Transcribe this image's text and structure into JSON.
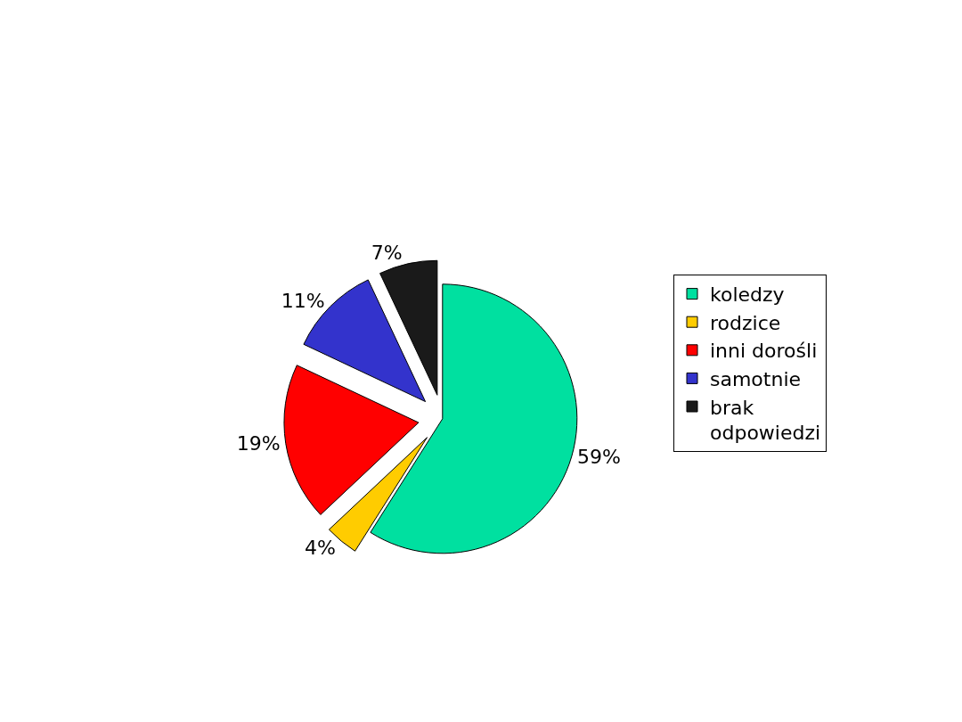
{
  "chart_data": {
    "type": "pie",
    "categories": [
      "koledzy",
      "rodzice",
      "inni dorośli",
      "samotnie",
      "brak odpowiedzi"
    ],
    "values": [
      59,
      4,
      19,
      11,
      7
    ],
    "colors": [
      "#00e0a0",
      "#ffcc00",
      "#ff0000",
      "#3333cc",
      "#1a1a1a"
    ],
    "value_labels": [
      "59%",
      "4%",
      "19%",
      "11%",
      "7%"
    ],
    "legend": "right"
  }
}
